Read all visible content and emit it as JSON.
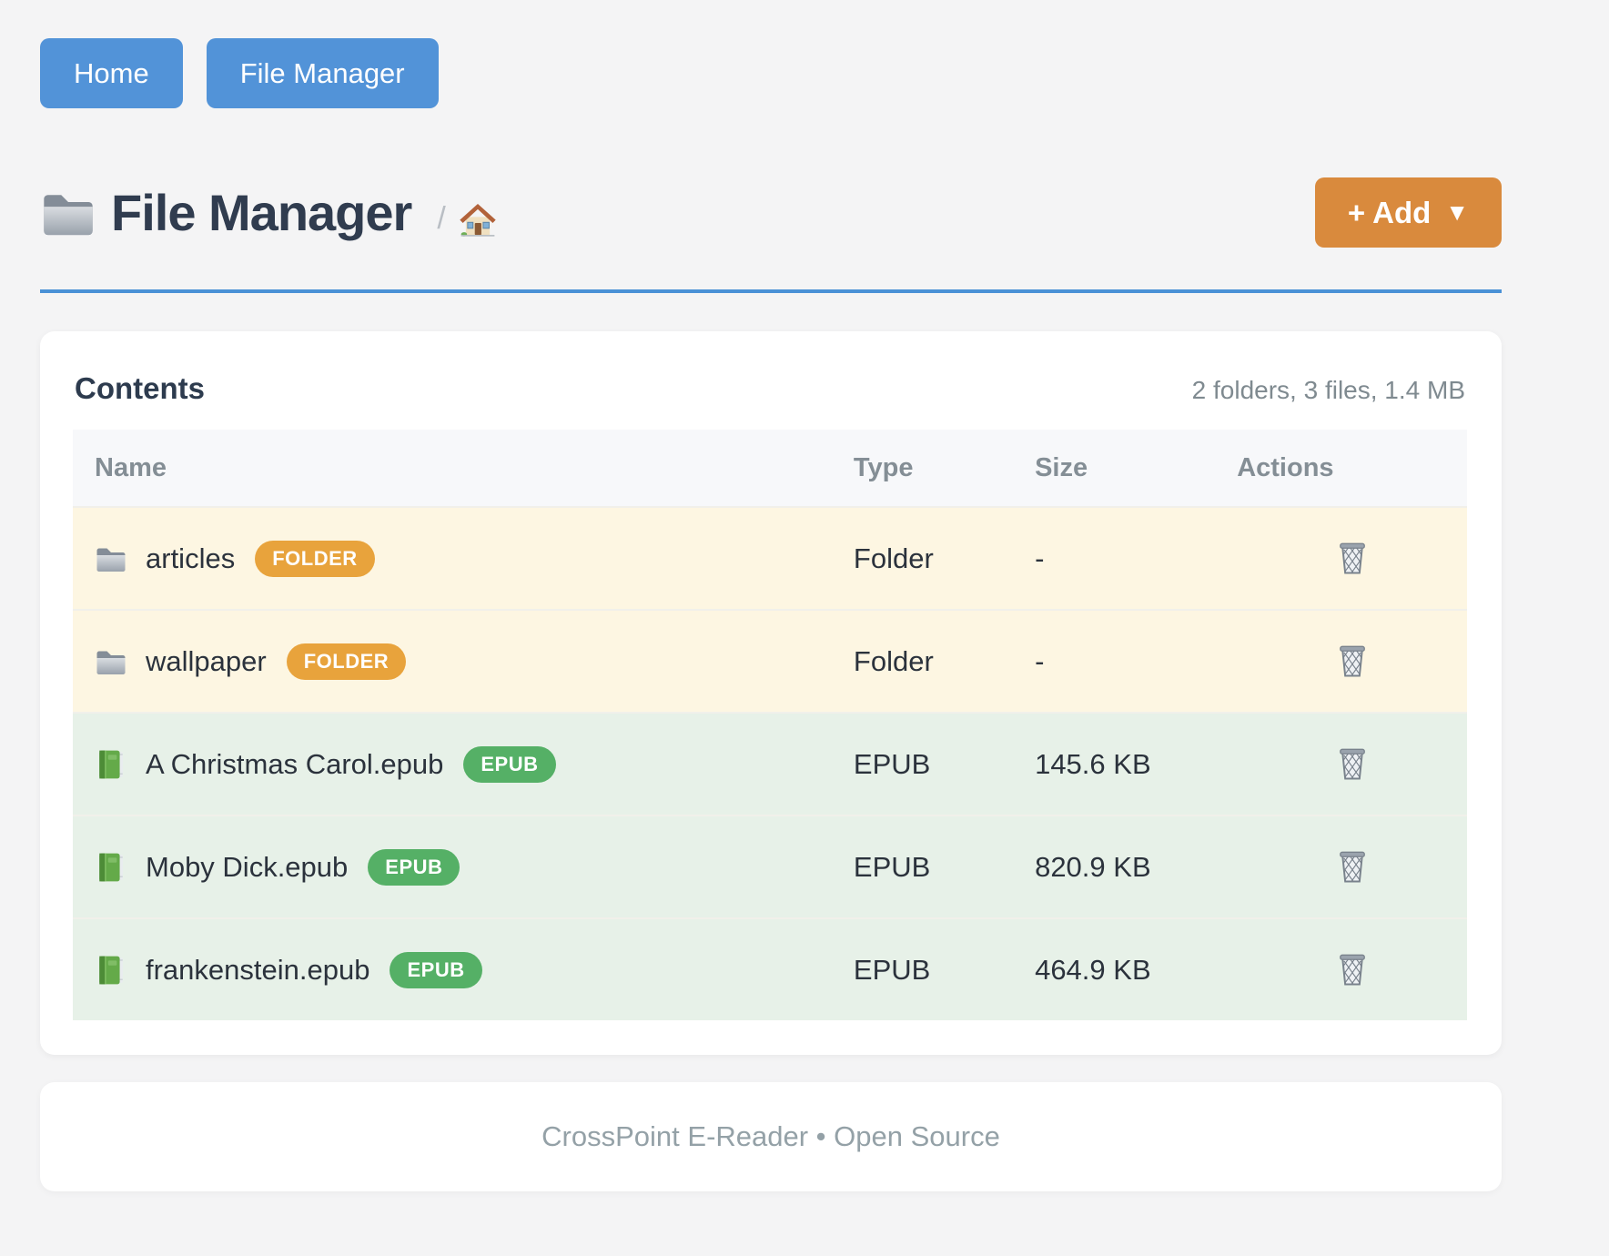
{
  "nav": {
    "buttons": [
      {
        "label": "Home"
      },
      {
        "label": "File Manager"
      }
    ]
  },
  "header": {
    "title_icon": "folder-icon",
    "title": "File Manager",
    "breadcrumb_separator": "/",
    "breadcrumb_home_icon": "home-icon",
    "add_button_label": "+ Add",
    "add_button_caret": "▼"
  },
  "contents_card": {
    "heading": "Contents",
    "summary": "2 folders, 3 files, 1.4 MB",
    "table": {
      "headers": [
        "Name",
        "Type",
        "Size",
        "Actions"
      ],
      "rows": [
        {
          "kind": "folder",
          "icon": "folder-icon",
          "name": "articles",
          "badge": "FOLDER",
          "type": "Folder",
          "size": "-",
          "action_icon": "trash-icon"
        },
        {
          "kind": "folder",
          "icon": "folder-icon",
          "name": "wallpaper",
          "badge": "FOLDER",
          "type": "Folder",
          "size": "-",
          "action_icon": "trash-icon"
        },
        {
          "kind": "epub",
          "icon": "book-icon",
          "name": "A Christmas Carol.epub",
          "badge": "EPUB",
          "type": "EPUB",
          "size": "145.6 KB",
          "action_icon": "trash-icon"
        },
        {
          "kind": "epub",
          "icon": "book-icon",
          "name": "Moby Dick.epub",
          "badge": "EPUB",
          "type": "EPUB",
          "size": "820.9 KB",
          "action_icon": "trash-icon"
        },
        {
          "kind": "epub",
          "icon": "book-icon",
          "name": "frankenstein.epub",
          "badge": "EPUB",
          "type": "EPUB",
          "size": "464.9 KB",
          "action_icon": "trash-icon"
        }
      ]
    }
  },
  "footer": {
    "text": "CrossPoint E-Reader • Open Source"
  },
  "colors": {
    "page_bg": "#f4f4f5",
    "accent_blue": "#5293d8",
    "rule_blue": "#4a91d6",
    "accent_orange": "#d98a3d",
    "folder_badge": "#e8a33c",
    "epub_badge": "#55b066",
    "folder_row_bg": "#fdf6e2",
    "epub_row_bg": "#e7f1e8"
  }
}
